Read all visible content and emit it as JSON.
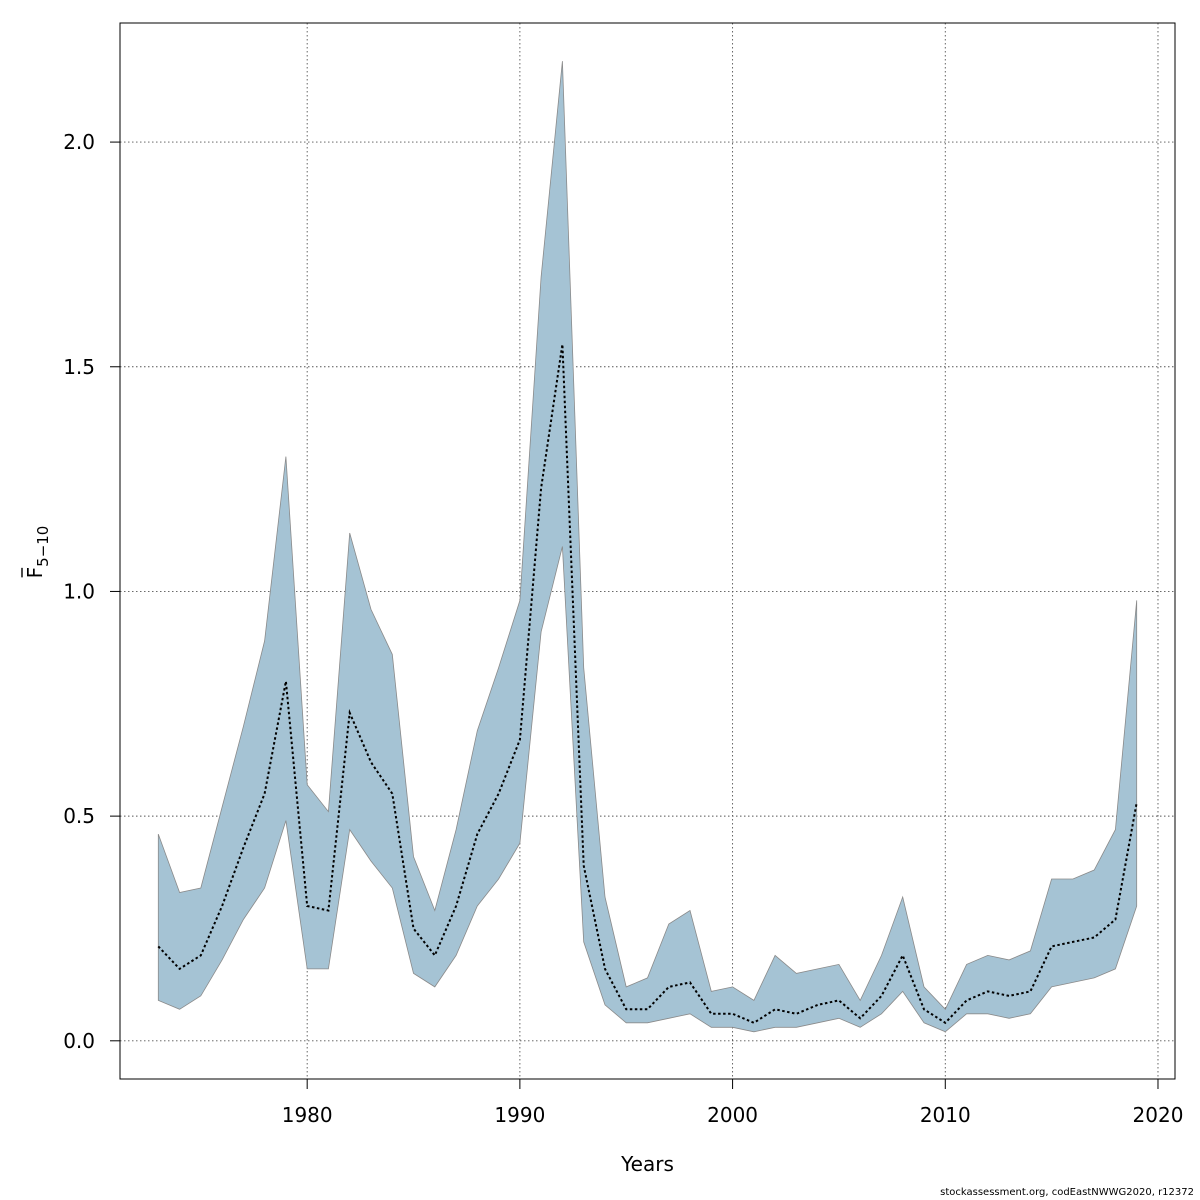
{
  "chart_data": {
    "type": "area",
    "xlabel": "Years",
    "ylabel": "F",
    "ylabel_subscript": "5−10",
    "xlim": [
      1971.2,
      2020.8
    ],
    "ylim": [
      -0.085,
      2.265
    ],
    "x_ticks": [
      1980,
      1990,
      2000,
      2010,
      2020
    ],
    "y_ticks": [
      0.0,
      0.5,
      1.0,
      1.5,
      2.0
    ],
    "y_tick_labels": [
      "0.0",
      "0.5",
      "1.0",
      "1.5",
      "2.0"
    ],
    "grid": true,
    "band_color": "#a5c3d4",
    "line_color": "#000000",
    "x": [
      1973,
      1974,
      1975,
      1976,
      1977,
      1978,
      1979,
      1980,
      1981,
      1982,
      1983,
      1984,
      1985,
      1986,
      1987,
      1988,
      1989,
      1990,
      1991,
      1992,
      1993,
      1994,
      1995,
      1996,
      1997,
      1998,
      1999,
      2000,
      2001,
      2002,
      2003,
      2004,
      2005,
      2006,
      2007,
      2008,
      2009,
      2010,
      2011,
      2012,
      2013,
      2014,
      2015,
      2016,
      2017,
      2018,
      2019
    ],
    "series": [
      {
        "role": "estimate",
        "values": [
          0.21,
          0.16,
          0.19,
          0.3,
          0.43,
          0.55,
          0.8,
          0.3,
          0.29,
          0.73,
          0.62,
          0.55,
          0.25,
          0.19,
          0.3,
          0.46,
          0.55,
          0.67,
          1.23,
          1.55,
          0.39,
          0.16,
          0.07,
          0.07,
          0.12,
          0.13,
          0.06,
          0.06,
          0.04,
          0.07,
          0.06,
          0.08,
          0.09,
          0.05,
          0.1,
          0.19,
          0.07,
          0.04,
          0.09,
          0.11,
          0.1,
          0.11,
          0.21,
          0.22,
          0.23,
          0.27,
          0.53
        ]
      },
      {
        "role": "upper",
        "values": [
          0.46,
          0.33,
          0.34,
          0.52,
          0.7,
          0.89,
          1.3,
          0.57,
          0.51,
          1.13,
          0.96,
          0.86,
          0.41,
          0.29,
          0.47,
          0.69,
          0.83,
          0.98,
          1.7,
          2.18,
          0.83,
          0.32,
          0.12,
          0.14,
          0.26,
          0.29,
          0.11,
          0.12,
          0.09,
          0.19,
          0.15,
          0.16,
          0.17,
          0.09,
          0.19,
          0.32,
          0.12,
          0.07,
          0.17,
          0.19,
          0.18,
          0.2,
          0.36,
          0.36,
          0.38,
          0.47,
          0.98
        ]
      },
      {
        "role": "lower",
        "values": [
          0.09,
          0.07,
          0.1,
          0.18,
          0.27,
          0.34,
          0.49,
          0.16,
          0.16,
          0.47,
          0.4,
          0.34,
          0.15,
          0.12,
          0.19,
          0.3,
          0.36,
          0.44,
          0.91,
          1.1,
          0.22,
          0.08,
          0.04,
          0.04,
          0.05,
          0.06,
          0.03,
          0.03,
          0.02,
          0.03,
          0.03,
          0.04,
          0.05,
          0.03,
          0.06,
          0.11,
          0.04,
          0.02,
          0.06,
          0.06,
          0.05,
          0.06,
          0.12,
          0.13,
          0.14,
          0.16,
          0.3
        ]
      }
    ]
  },
  "footer": "stockassessment.org, codEastNWWG2020, r12372"
}
